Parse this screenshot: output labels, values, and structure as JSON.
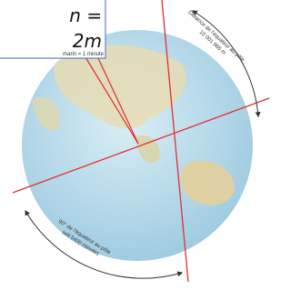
{
  "box": {
    "line1": "n =",
    "line2": "2m",
    "caption": "marin = 1 minute"
  },
  "arc_top": {
    "line1": "Distance de l'équateur au pôle :",
    "line2": "10 001 966 m"
  },
  "arc_bottom": {
    "line1": "90° de l'équateur au pôle",
    "line2": "soit 5400 minutes"
  }
}
